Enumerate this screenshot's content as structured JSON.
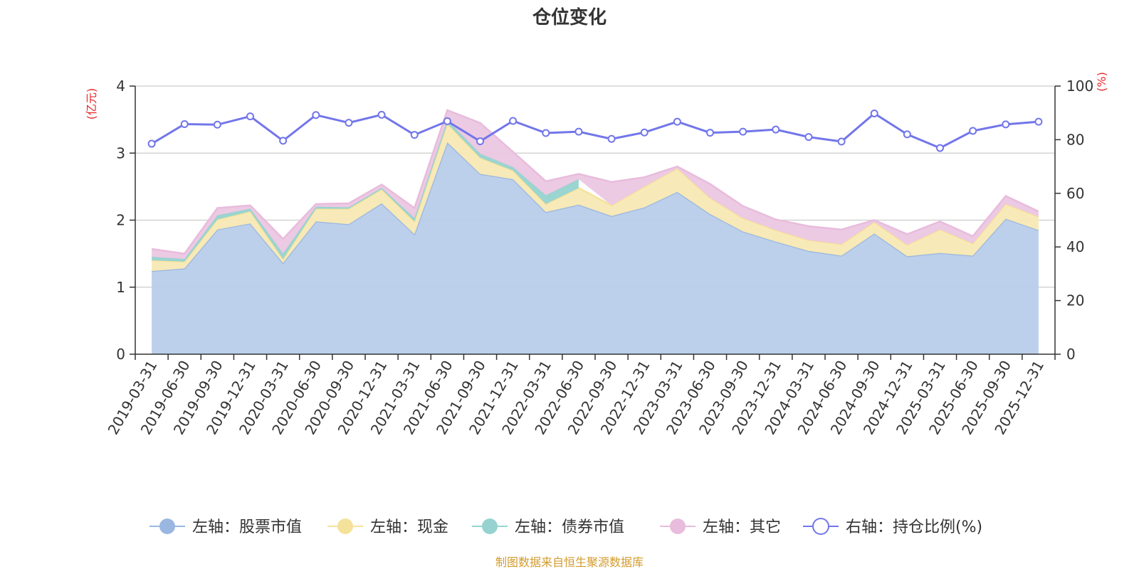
{
  "chart_data": {
    "type": "area",
    "title": "仓位变化",
    "left_axis_unit": "(亿元)",
    "right_axis_unit": "(%)",
    "ylim_left": [
      0,
      4
    ],
    "ylim_right": [
      0,
      100
    ],
    "left_ticks": [
      "0",
      "1",
      "2",
      "3",
      "4"
    ],
    "right_ticks": [
      "0",
      "20",
      "40",
      "60",
      "80",
      "100"
    ],
    "categories": [
      "2019-03-31",
      "2019-06-30",
      "2019-09-30",
      "2019-12-31",
      "2020-03-31",
      "2020-06-30",
      "2020-09-30",
      "2020-12-31",
      "2021-03-31",
      "2021-06-30",
      "2021-09-30",
      "2021-12-31",
      "2022-03-31",
      "2022-06-30",
      "2022-09-30",
      "2022-12-31",
      "2023-03-31",
      "2023-06-30",
      "2023-09-30",
      "2023-12-31",
      "2024-03-31",
      "2024-06-30",
      "2024-09-30",
      "2024-12-31",
      "2025-03-31",
      "2025-06-30",
      "2025-09-30",
      "2025-12-31"
    ],
    "series": [
      {
        "name": "左轴：股票市值",
        "axis": "left",
        "color": "#9ab7e1",
        "fill": "#b8cdeb",
        "values": [
          1.24,
          1.28,
          1.86,
          1.95,
          1.36,
          1.98,
          1.94,
          2.25,
          1.79,
          3.16,
          2.69,
          2.61,
          2.12,
          2.23,
          2.06,
          2.19,
          2.42,
          2.09,
          1.83,
          1.68,
          1.54,
          1.47,
          1.8,
          1.46,
          1.51,
          1.47,
          2.02,
          1.85
        ]
      },
      {
        "name": "左轴：现金",
        "axis": "left",
        "color": "#f5e29a",
        "fill": "#f8e9b4",
        "values": [
          0.16,
          0.1,
          0.15,
          0.18,
          0.06,
          0.19,
          0.23,
          0.21,
          0.19,
          0.28,
          0.24,
          0.13,
          0.12,
          0.25,
          0.16,
          0.31,
          0.35,
          0.24,
          0.2,
          0.17,
          0.16,
          0.17,
          0.17,
          0.17,
          0.35,
          0.18,
          0.22,
          0.2
        ]
      },
      {
        "name": "左轴：债券市值",
        "axis": "left",
        "color": "#96d3d0",
        "fill": "#96d3d0",
        "values": [
          0.05,
          0.04,
          0.06,
          0.04,
          0.08,
          0.03,
          0.02,
          0.02,
          0.05,
          0.05,
          0.06,
          0.05,
          0.13,
          0.13,
          0.0,
          0.0,
          0.0,
          0.0,
          0.0,
          0.0,
          0.0,
          0.0,
          0.0,
          0.0,
          0.0,
          0.0,
          0.0,
          0.0
        ]
      },
      {
        "name": "左轴：其它",
        "axis": "left",
        "color": "#e8bcdc",
        "fill": "#ecc7e2",
        "values": [
          0.12,
          0.08,
          0.11,
          0.05,
          0.22,
          0.04,
          0.06,
          0.05,
          0.15,
          0.15,
          0.46,
          0.23,
          0.21,
          0.08,
          0.35,
          0.14,
          0.03,
          0.21,
          0.18,
          0.16,
          0.21,
          0.22,
          0.03,
          0.16,
          0.12,
          0.11,
          0.12,
          0.08
        ]
      },
      {
        "name": "右轴：持仓比例(%)",
        "axis": "right",
        "color": "#7276ea",
        "values": [
          78.5,
          85.8,
          85.6,
          88.7,
          79.6,
          89.2,
          86.3,
          89.3,
          81.8,
          86.9,
          79.4,
          87.0,
          82.5,
          83.0,
          80.3,
          82.7,
          86.7,
          82.6,
          83.0,
          83.8,
          81.0,
          79.3,
          89.8,
          82.0,
          76.9,
          83.3,
          85.7,
          86.7
        ]
      }
    ]
  },
  "footer": {
    "text": "制图数据来自恒生聚源数据库",
    "color": "#d39b2c"
  },
  "colors": {
    "axis": "#333333",
    "grid": "#cccccc",
    "unit": "#e8262a",
    "dot_fill": "#ffffff"
  }
}
